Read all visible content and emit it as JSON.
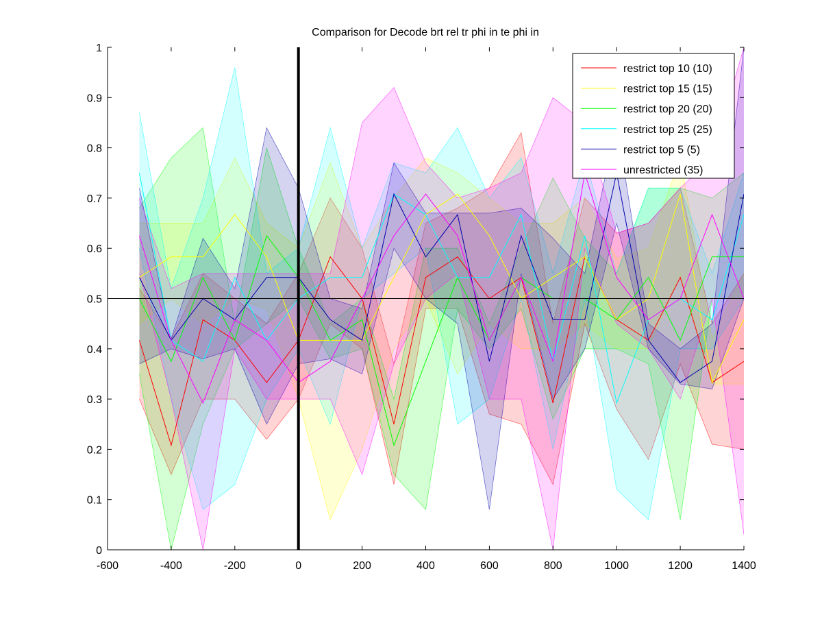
{
  "chart_data": {
    "type": "line",
    "title": "Comparison for Decode brt rel tr phi in te phi in",
    "xlabel": "",
    "ylabel": "",
    "xlim": [
      -600,
      1400
    ],
    "ylim": [
      0,
      1
    ],
    "xticks": [
      -600,
      -400,
      -200,
      0,
      200,
      400,
      600,
      800,
      1000,
      1200,
      1400
    ],
    "yticks": [
      0,
      0.1,
      0.2,
      0.3,
      0.4,
      0.5,
      0.6,
      0.7,
      0.8,
      0.9,
      1
    ],
    "xtick_labels": [
      "-600",
      "-400",
      "-200",
      "0",
      "200",
      "400",
      "600",
      "800",
      "1000",
      "1200",
      "1400"
    ],
    "ytick_labels": [
      "0",
      "0.1",
      "0.2",
      "0.3",
      "0.4",
      "0.5",
      "0.6",
      "0.7",
      "0.8",
      "0.9",
      "1"
    ],
    "reference_hline": 0.5,
    "reference_vline": 0,
    "grid": false,
    "legend_position": "top-right",
    "x": [
      -500,
      -400,
      -300,
      -200,
      -100,
      0,
      100,
      200,
      300,
      400,
      500,
      600,
      700,
      800,
      900,
      1000,
      1100,
      1200,
      1300,
      1400
    ],
    "series": [
      {
        "name": "restrict top 10 (10)",
        "color": "#ff0000",
        "values": [
          0.417,
          0.208,
          0.458,
          0.417,
          0.333,
          0.417,
          0.583,
          0.5,
          0.25,
          0.542,
          0.583,
          0.5,
          0.542,
          0.292,
          0.583,
          0.458,
          0.417,
          0.542,
          0.333,
          0.375
        ],
        "upper": [
          0.52,
          0.42,
          0.55,
          0.5,
          0.45,
          0.55,
          0.7,
          0.6,
          0.37,
          0.65,
          0.68,
          0.72,
          0.83,
          0.45,
          0.7,
          0.63,
          0.65,
          0.72,
          0.45,
          0.55
        ],
        "lower": [
          0.3,
          0.15,
          0.3,
          0.3,
          0.22,
          0.3,
          0.45,
          0.4,
          0.13,
          0.48,
          0.48,
          0.27,
          0.25,
          0.13,
          0.45,
          0.28,
          0.18,
          0.37,
          0.21,
          0.2
        ]
      },
      {
        "name": "restrict top 15 (15)",
        "color": "#ffff00",
        "values": [
          0.542,
          0.583,
          0.583,
          0.667,
          0.583,
          0.417,
          0.417,
          0.417,
          0.542,
          0.667,
          0.708,
          0.625,
          0.5,
          0.542,
          0.583,
          0.458,
          0.5,
          0.708,
          0.333,
          0.458
        ],
        "upper": [
          0.65,
          0.65,
          0.65,
          0.78,
          0.65,
          0.6,
          0.77,
          0.6,
          0.7,
          0.78,
          0.75,
          0.7,
          0.65,
          0.65,
          0.7,
          0.58,
          0.6,
          0.78,
          0.42,
          0.55
        ],
        "lower": [
          0.45,
          0.5,
          0.45,
          0.5,
          0.48,
          0.3,
          0.06,
          0.2,
          0.4,
          0.5,
          0.35,
          0.45,
          0.4,
          0.4,
          0.45,
          0.4,
          0.4,
          0.55,
          0.33,
          0.33
        ]
      },
      {
        "name": "restrict top 20 (20)",
        "color": "#00ff00",
        "values": [
          0.5,
          0.375,
          0.542,
          0.417,
          0.625,
          0.542,
          0.417,
          0.458,
          0.208,
          0.375,
          0.542,
          0.417,
          0.542,
          0.5,
          0.5,
          0.458,
          0.542,
          0.417,
          0.583,
          0.583
        ],
        "upper": [
          0.68,
          0.78,
          0.84,
          0.45,
          0.8,
          0.6,
          0.45,
          0.5,
          0.3,
          0.6,
          0.6,
          0.45,
          0.6,
          0.74,
          0.62,
          0.55,
          0.72,
          0.72,
          0.7,
          0.75
        ],
        "lower": [
          0.35,
          0.0,
          0.25,
          0.4,
          0.45,
          0.5,
          0.38,
          0.4,
          0.15,
          0.08,
          0.48,
          0.4,
          0.48,
          0.26,
          0.4,
          0.4,
          0.37,
          0.06,
          0.5,
          0.5
        ]
      },
      {
        "name": "restrict top 25 (25)",
        "color": "#00ffff",
        "values": [
          0.75,
          0.417,
          0.375,
          0.542,
          0.417,
          0.5,
          0.542,
          0.542,
          0.708,
          0.667,
          0.542,
          0.542,
          0.667,
          0.375,
          0.625,
          0.292,
          0.458,
          0.5,
          0.458,
          0.667
        ],
        "upper": [
          0.87,
          0.52,
          0.7,
          0.96,
          0.55,
          0.6,
          0.84,
          0.6,
          0.77,
          0.75,
          0.84,
          0.7,
          0.78,
          0.55,
          0.78,
          0.55,
          0.72,
          0.72,
          0.55,
          0.75
        ],
        "lower": [
          0.6,
          0.3,
          0.08,
          0.13,
          0.3,
          0.4,
          0.25,
          0.5,
          0.55,
          0.6,
          0.25,
          0.3,
          0.5,
          0.2,
          0.5,
          0.12,
          0.06,
          0.4,
          0.4,
          0.5
        ]
      },
      {
        "name": "restrict top 5 (5)",
        "color": "#0000aa",
        "values": [
          0.542,
          0.417,
          0.5,
          0.458,
          0.542,
          0.542,
          0.458,
          0.417,
          0.708,
          0.583,
          0.667,
          0.375,
          0.625,
          0.458,
          0.458,
          0.75,
          0.417,
          0.333,
          0.375,
          0.708
        ],
        "upper": [
          0.72,
          0.42,
          0.62,
          0.52,
          0.84,
          0.72,
          0.5,
          0.48,
          0.77,
          0.67,
          0.67,
          0.67,
          0.68,
          0.62,
          0.55,
          0.85,
          0.45,
          0.4,
          0.45,
          1.0
        ],
        "lower": [
          0.37,
          0.4,
          0.38,
          0.4,
          0.25,
          0.37,
          0.38,
          0.35,
          0.6,
          0.5,
          0.45,
          0.08,
          0.55,
          0.3,
          0.4,
          0.65,
          0.4,
          0.33,
          0.32,
          0.5
        ]
      },
      {
        "name": "unrestricted (35)",
        "color": "#ff00ff",
        "values": [
          0.625,
          0.417,
          0.292,
          0.458,
          0.417,
          0.333,
          0.375,
          0.5,
          0.625,
          0.708,
          0.625,
          0.417,
          0.542,
          0.375,
          0.75,
          0.542,
          0.458,
          0.5,
          0.667,
          0.5
        ],
        "upper": [
          0.7,
          0.52,
          0.55,
          0.55,
          0.55,
          0.55,
          0.55,
          0.85,
          0.92,
          0.77,
          0.7,
          0.72,
          0.75,
          0.9,
          0.85,
          0.63,
          0.65,
          0.72,
          0.78,
          1.0
        ],
        "lower": [
          0.55,
          0.3,
          0.0,
          0.4,
          0.3,
          0.3,
          0.3,
          0.15,
          0.37,
          0.5,
          0.55,
          0.3,
          0.3,
          0.0,
          0.6,
          0.45,
          0.4,
          0.3,
          0.5,
          0.03
        ]
      }
    ]
  }
}
